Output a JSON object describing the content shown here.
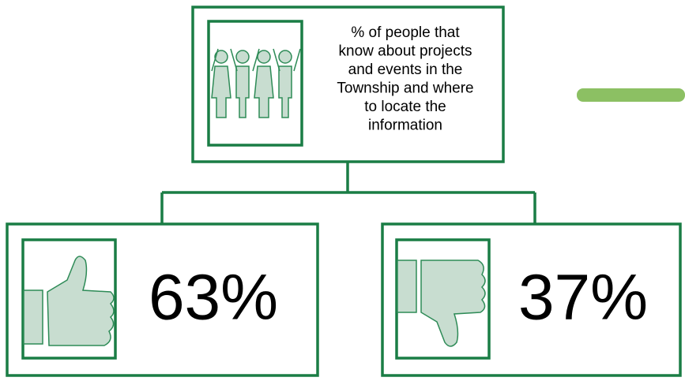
{
  "root": {
    "lines": [
      "% of people that",
      "know about projects",
      "and events in the",
      "Township and where",
      "to locate the",
      "information"
    ]
  },
  "children": [
    {
      "value": "63%"
    },
    {
      "value": "37%"
    }
  ]
}
